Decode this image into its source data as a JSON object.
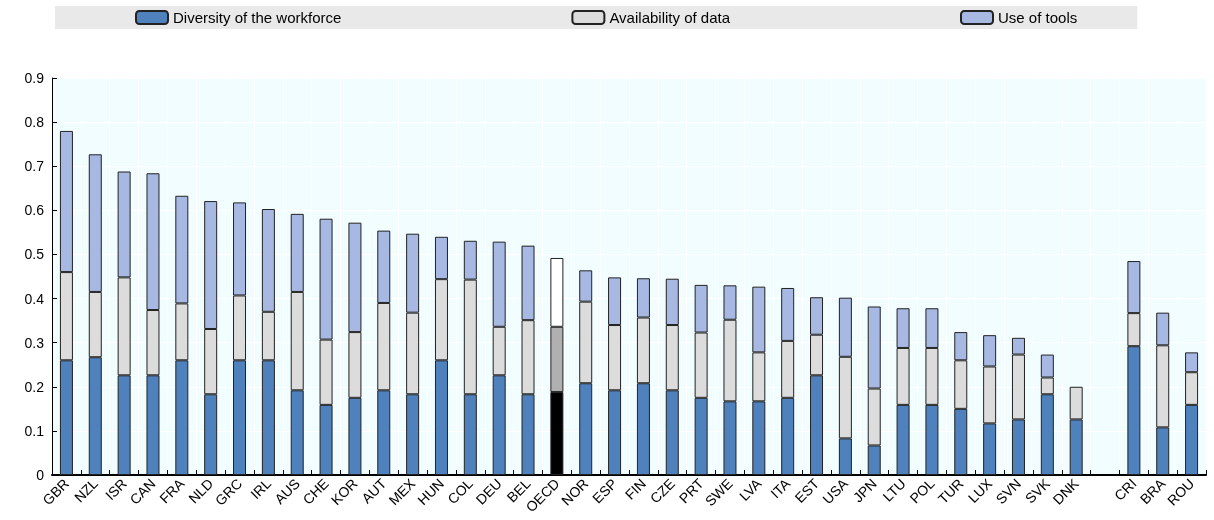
{
  "chart_data": {
    "type": "bar",
    "stacked": true,
    "categories": [
      "GBR",
      "NZL",
      "ISR",
      "CAN",
      "FRA",
      "NLD",
      "GRC",
      "IRL",
      "AUS",
      "CHE",
      "KOR",
      "AUT",
      "MEX",
      "HUN",
      "COL",
      "DEU",
      "BEL",
      "OECD",
      "NOR",
      "ESP",
      "FIN",
      "CZE",
      "PRT",
      "SWE",
      "LVA",
      "ITA",
      "EST",
      "USA",
      "JPN",
      "LTU",
      "POL",
      "TUR",
      "LUX",
      "SVN",
      "SVK",
      "DNK",
      null,
      "CRI",
      "BRA",
      "ROU"
    ],
    "series": [
      {
        "name": "Diversity of the workforce",
        "color": "#4f81bd",
        "colors": [
          "#4f81bd",
          "#4f81bd",
          "#4f81bd",
          "#4f81bd",
          "#4f81bd",
          "#4f81bd",
          "#4f81bd",
          "#4f81bd",
          "#4f81bd",
          "#4f81bd",
          "#4f81bd",
          "#4f81bd",
          "#4f81bd",
          "#4f81bd",
          "#4f81bd",
          "#4f81bd",
          "#4f81bd",
          "#000000",
          "#4f81bd",
          "#4f81bd",
          "#4f81bd",
          "#4f81bd",
          "#4f81bd",
          "#4f81bd",
          "#4f81bd",
          "#4f81bd",
          "#4f81bd",
          "#4f81bd",
          "#4f81bd",
          "#4f81bd",
          "#4f81bd",
          "#4f81bd",
          "#4f81bd",
          "#4f81bd",
          "#4f81bd",
          "#4f81bd",
          "#4f81bd",
          "#4f81bd",
          "#4f81bd",
          "#4f81bd"
        ],
        "values": [
          0.26,
          0.267,
          0.226,
          0.226,
          0.26,
          0.183,
          0.26,
          0.26,
          0.192,
          0.159,
          0.175,
          0.192,
          0.183,
          0.26,
          0.183,
          0.226,
          0.183,
          0.188,
          0.208,
          0.192,
          0.208,
          0.192,
          0.175,
          0.167,
          0.167,
          0.175,
          0.226,
          0.083,
          0.067,
          0.159,
          0.159,
          0.15,
          0.117,
          0.126,
          0.183,
          0.126,
          null,
          0.292,
          0.108,
          0.159
        ]
      },
      {
        "name": "Availability of data",
        "color": "#dcdcdc",
        "colors": [
          "#dcdcdc",
          "#dcdcdc",
          "#dcdcdc",
          "#dcdcdc",
          "#dcdcdc",
          "#dcdcdc",
          "#dcdcdc",
          "#dcdcdc",
          "#dcdcdc",
          "#dcdcdc",
          "#dcdcdc",
          "#dcdcdc",
          "#dcdcdc",
          "#dcdcdc",
          "#dcdcdc",
          "#dcdcdc",
          "#dcdcdc",
          "#b0b0b0",
          "#dcdcdc",
          "#dcdcdc",
          "#dcdcdc",
          "#dcdcdc",
          "#dcdcdc",
          "#dcdcdc",
          "#dcdcdc",
          "#dcdcdc",
          "#dcdcdc",
          "#dcdcdc",
          "#dcdcdc",
          "#dcdcdc",
          "#dcdcdc",
          "#dcdcdc",
          "#dcdcdc",
          "#dcdcdc",
          "#dcdcdc",
          "#dcdcdc",
          "#dcdcdc",
          "#dcdcdc",
          "#dcdcdc",
          "#dcdcdc"
        ],
        "values": [
          0.2,
          0.148,
          0.222,
          0.148,
          0.129,
          0.148,
          0.147,
          0.11,
          0.223,
          0.148,
          0.149,
          0.198,
          0.185,
          0.184,
          0.26,
          0.11,
          0.168,
          0.148,
          0.185,
          0.148,
          0.149,
          0.148,
          0.148,
          0.185,
          0.111,
          0.129,
          0.092,
          0.185,
          0.129,
          0.129,
          0.129,
          0.11,
          0.129,
          0.147,
          0.038,
          0.074,
          null,
          0.075,
          0.186,
          0.074
        ]
      },
      {
        "name": "Use of tools",
        "color": "#a7b8e3",
        "colors": [
          "#a7b8e3",
          "#a7b8e3",
          "#a7b8e3",
          "#a7b8e3",
          "#a7b8e3",
          "#a7b8e3",
          "#a7b8e3",
          "#a7b8e3",
          "#a7b8e3",
          "#a7b8e3",
          "#a7b8e3",
          "#a7b8e3",
          "#a7b8e3",
          "#a7b8e3",
          "#a7b8e3",
          "#a7b8e3",
          "#a7b8e3",
          "#ffffff",
          "#a7b8e3",
          "#a7b8e3",
          "#a7b8e3",
          "#a7b8e3",
          "#a7b8e3",
          "#a7b8e3",
          "#a7b8e3",
          "#a7b8e3",
          "#a7b8e3",
          "#a7b8e3",
          "#a7b8e3",
          "#a7b8e3",
          "#a7b8e3",
          "#a7b8e3",
          "#a7b8e3",
          "#a7b8e3",
          "#a7b8e3",
          "#a7b8e3",
          "#a7b8e3",
          "#a7b8e3",
          "#a7b8e3",
          "#a7b8e3"
        ],
        "values": [
          0.32,
          0.312,
          0.24,
          0.31,
          0.244,
          0.29,
          0.211,
          0.233,
          0.177,
          0.274,
          0.248,
          0.164,
          0.179,
          0.096,
          0.088,
          0.193,
          0.169,
          0.156,
          0.071,
          0.108,
          0.089,
          0.105,
          0.108,
          0.078,
          0.149,
          0.12,
          0.085,
          0.134,
          0.186,
          0.09,
          0.09,
          0.064,
          0.071,
          0.038,
          0.052,
          null,
          null,
          0.118,
          0.074,
          0.045
        ]
      }
    ],
    "ylim": [
      0,
      0.9
    ],
    "yticks": [
      0,
      0.1,
      0.2,
      0.3,
      0.4,
      0.5,
      0.6,
      0.7,
      0.8,
      0.9
    ],
    "grid": true,
    "legend": "top"
  }
}
